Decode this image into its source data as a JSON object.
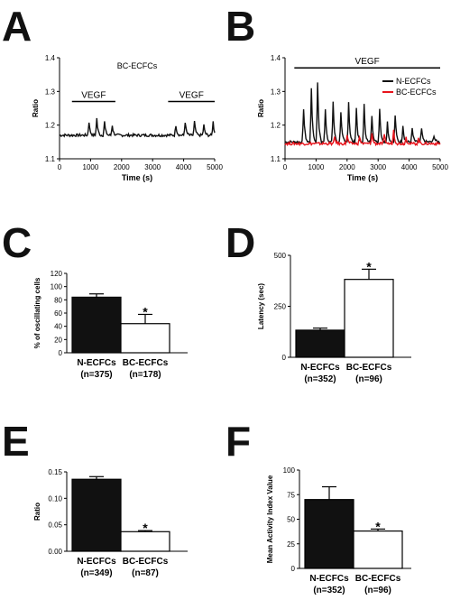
{
  "panels": [
    {
      "letter": "A"
    },
    {
      "letter": "B"
    },
    {
      "letter": "C"
    },
    {
      "letter": "D"
    },
    {
      "letter": "E"
    },
    {
      "letter": "F"
    }
  ],
  "chart_data": [
    {
      "id": "A",
      "type": "line",
      "title": "BC-ECFCs",
      "xlabel": "Time (s)",
      "ylabel": "Ratio",
      "xlim": [
        0,
        5000
      ],
      "ylim": [
        1.1,
        1.4
      ],
      "xticks": [
        "0",
        "1000",
        "2000",
        "3000",
        "4000",
        "5000"
      ],
      "yticks": [
        "1.1",
        "1.2",
        "1.3",
        "1.4"
      ],
      "annotations": [
        {
          "text": "VEGF",
          "x_start": 400,
          "x_end": 1800,
          "y": 1.27
        },
        {
          "text": "VEGF",
          "x_start": 3500,
          "x_end": 5000,
          "y": 1.27
        }
      ],
      "series": [
        {
          "color": "#111111",
          "baseline": 1.17,
          "peaks": [
            {
              "x": 950,
              "h": 0.04
            },
            {
              "x": 1200,
              "h": 0.05
            },
            {
              "x": 1450,
              "h": 0.04
            },
            {
              "x": 1700,
              "h": 0.03
            },
            {
              "x": 3750,
              "h": 0.03
            },
            {
              "x": 4050,
              "h": 0.04
            },
            {
              "x": 4350,
              "h": 0.04
            },
            {
              "x": 4650,
              "h": 0.03
            },
            {
              "x": 4950,
              "h": 0.04
            }
          ]
        }
      ]
    },
    {
      "id": "B",
      "type": "line",
      "xlabel": "Time (s)",
      "ylabel": "Ratio",
      "xlim": [
        0,
        5000
      ],
      "ylim": [
        1.1,
        1.4
      ],
      "xticks": [
        "0",
        "1000",
        "2000",
        "3000",
        "4000",
        "5000"
      ],
      "yticks": [
        "1.1",
        "1.2",
        "1.3",
        "1.4"
      ],
      "legend": "right",
      "annotations": [
        {
          "text": "VEGF",
          "x_start": 300,
          "x_end": 5000,
          "y": 1.37
        }
      ],
      "series": [
        {
          "name": "N-ECFCs",
          "color": "#111111",
          "baseline": 1.15,
          "peaks": [
            {
              "x": 600,
              "h": 0.1
            },
            {
              "x": 850,
              "h": 0.16
            },
            {
              "x": 1050,
              "h": 0.18
            },
            {
              "x": 1300,
              "h": 0.1
            },
            {
              "x": 1550,
              "h": 0.12
            },
            {
              "x": 1800,
              "h": 0.09
            },
            {
              "x": 2050,
              "h": 0.12
            },
            {
              "x": 2300,
              "h": 0.1
            },
            {
              "x": 2550,
              "h": 0.11
            },
            {
              "x": 2800,
              "h": 0.08
            },
            {
              "x": 3050,
              "h": 0.1
            },
            {
              "x": 3300,
              "h": 0.06
            },
            {
              "x": 3550,
              "h": 0.08
            },
            {
              "x": 3800,
              "h": 0.05
            },
            {
              "x": 4100,
              "h": 0.04
            },
            {
              "x": 4400,
              "h": 0.04
            },
            {
              "x": 4800,
              "h": 0.02
            }
          ]
        },
        {
          "name": "BC-ECFCs",
          "color": "#e8141c",
          "baseline": 1.145,
          "peaks": [
            {
              "x": 1600,
              "h": 0.02
            },
            {
              "x": 2000,
              "h": 0.025
            },
            {
              "x": 2400,
              "h": 0.02
            },
            {
              "x": 2800,
              "h": 0.03
            },
            {
              "x": 3200,
              "h": 0.025
            },
            {
              "x": 3500,
              "h": 0.04
            },
            {
              "x": 3900,
              "h": 0.02
            },
            {
              "x": 4300,
              "h": 0.015
            }
          ]
        }
      ]
    },
    {
      "id": "C",
      "type": "bar",
      "ylabel": "% of oscillating cells",
      "ylim": [
        0,
        120
      ],
      "yticks": [
        "0",
        "20",
        "40",
        "60",
        "80",
        "100",
        "120"
      ],
      "categories": [
        "N-ECFCs",
        "BC-ECFCs"
      ],
      "n_labels": [
        "(n=375)",
        "(n=178)"
      ],
      "values": [
        84,
        44
      ],
      "errors": [
        5,
        14
      ],
      "fills": [
        "#111111",
        "#ffffff"
      ],
      "significance": [
        "",
        "*"
      ]
    },
    {
      "id": "D",
      "type": "bar",
      "ylabel": "Latency (sec)",
      "ylim": [
        0,
        500
      ],
      "yticks": [
        "0",
        "250",
        "500"
      ],
      "categories": [
        "N-ECFCs",
        "BC-ECFCs"
      ],
      "n_labels": [
        "(n=352)",
        "(n=96)"
      ],
      "values": [
        133,
        382
      ],
      "errors": [
        10,
        50
      ],
      "fills": [
        "#111111",
        "#ffffff"
      ],
      "significance": [
        "",
        "*"
      ]
    },
    {
      "id": "E",
      "type": "bar",
      "ylabel": "Ratio",
      "ylim": [
        0,
        0.15
      ],
      "yticks": [
        "0.00",
        "0.05",
        "0.10",
        "0.15"
      ],
      "categories": [
        "N-ECFCs",
        "BC-ECFCs"
      ],
      "n_labels": [
        "(n=349)",
        "(n=87)"
      ],
      "values": [
        0.136,
        0.037
      ],
      "errors": [
        0.005,
        0.002
      ],
      "fills": [
        "#111111",
        "#ffffff"
      ],
      "significance": [
        "",
        "*"
      ]
    },
    {
      "id": "F",
      "type": "bar",
      "ylabel": "Mean Activity Index Value",
      "ylim": [
        0,
        100
      ],
      "yticks": [
        "0",
        "25",
        "50",
        "75",
        "100"
      ],
      "categories": [
        "N-ECFCs",
        "BC-ECFCs"
      ],
      "n_labels": [
        "(n=352)",
        "(n=96)"
      ],
      "values": [
        70,
        38
      ],
      "errors": [
        13,
        2
      ],
      "fills": [
        "#111111",
        "#ffffff"
      ],
      "significance": [
        "",
        "*"
      ]
    }
  ]
}
